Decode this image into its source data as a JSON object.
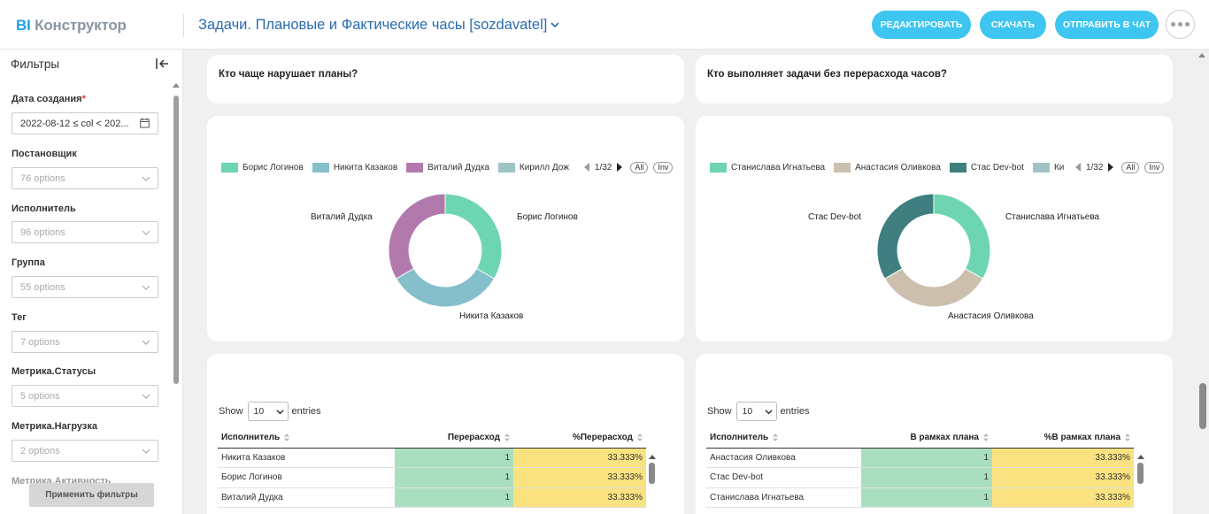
{
  "app": {
    "logo_bi": "BI",
    "logo_text": "Конструктор"
  },
  "header": {
    "title": "Задачи. Плановые и Фактические часы [sozdavatel]",
    "buttons": {
      "edit": "Редактировать",
      "download": "Скачать",
      "send": "Отправить в чат"
    }
  },
  "sidebar": {
    "title": "Фильтры",
    "filters": [
      {
        "label": "Дата создания",
        "required": "*",
        "value": "2022-08-12 ≤ col < 202..."
      },
      {
        "label": "Постановщик",
        "placeholder": "76 options"
      },
      {
        "label": "Исполнитель",
        "placeholder": "96 options"
      },
      {
        "label": "Группа",
        "placeholder": "55 options"
      },
      {
        "label": "Тег",
        "placeholder": "7 options"
      },
      {
        "label": "Метрика.Статусы",
        "placeholder": "5 options"
      },
      {
        "label": "Метрика.Нагрузка",
        "placeholder": "2 options"
      },
      {
        "label": "Метрика.Активность"
      }
    ],
    "apply_button": "Применить фильтры"
  },
  "cards": {
    "left_title": "Кто чаще нарушает планы?",
    "right_title": "Кто выполняет задачи без перерасхода часов?"
  },
  "charts": {
    "left": {
      "legend": [
        "Борис Логинов",
        "Никита Казаков",
        "Виталий Дудка",
        "Кирилл Дож"
      ],
      "pager": "1/32",
      "all": "All",
      "inv": "Inv",
      "labels": {
        "s0": "Борис Логинов",
        "s1": "Никита Казаков",
        "s2": "Виталий Дудка"
      }
    },
    "right": {
      "legend": [
        "Станислава Игнатьева",
        "Анастасия Оливкова",
        "Стас Dev-bot",
        "Ки"
      ],
      "pager": "1/32",
      "all": "All",
      "inv": "Inv",
      "labels": {
        "s0": "Станислава Игнатьева",
        "s1": "Анастасия Оливкова",
        "s2": "Стас Dev-bot"
      }
    }
  },
  "chart_data": [
    {
      "type": "pie",
      "categories": [
        "Борис Логинов",
        "Никита Казаков",
        "Виталий Дудка"
      ],
      "values": [
        1,
        1,
        1
      ],
      "colors": [
        "#6dd5b1",
        "#86bfcc",
        "#b279ad"
      ],
      "legend_placement": "top"
    },
    {
      "type": "pie",
      "categories": [
        "Станислава Игнатьева",
        "Анастасия Оливкова",
        "Стас Dev-bot"
      ],
      "values": [
        1,
        1,
        1
      ],
      "colors": [
        "#6dd5b1",
        "#cdbfae",
        "#3f7f7f"
      ],
      "legend_placement": "top"
    }
  ],
  "tables": {
    "left": {
      "show": "Show",
      "entries": "entries",
      "page_size": "10",
      "headers": [
        "Исполнитель",
        "Перерасход",
        "%Перерасход"
      ],
      "rows": [
        [
          "Никита Казаков",
          "1",
          "33.333%"
        ],
        [
          "Борис Логинов",
          "1",
          "33.333%"
        ],
        [
          "Виталий Дудка",
          "1",
          "33.333%"
        ]
      ]
    },
    "right": {
      "show": "Show",
      "entries": "entries",
      "page_size": "10",
      "headers": [
        "Исполнитель",
        "В рамках плана",
        "%В рамках плана"
      ],
      "rows": [
        [
          "Анастасия Оливкова",
          "1",
          "33.333%"
        ],
        [
          "Стас Dev-bot",
          "1",
          "33.333%"
        ],
        [
          "Станислава Игнатьева",
          "1",
          "33.333%"
        ]
      ]
    }
  },
  "colors": {
    "accent": "#3ec5f0",
    "title_blue": "#2b6cb0",
    "cell_green": "#a9dfbf",
    "cell_yellow": "#f9e27f"
  }
}
